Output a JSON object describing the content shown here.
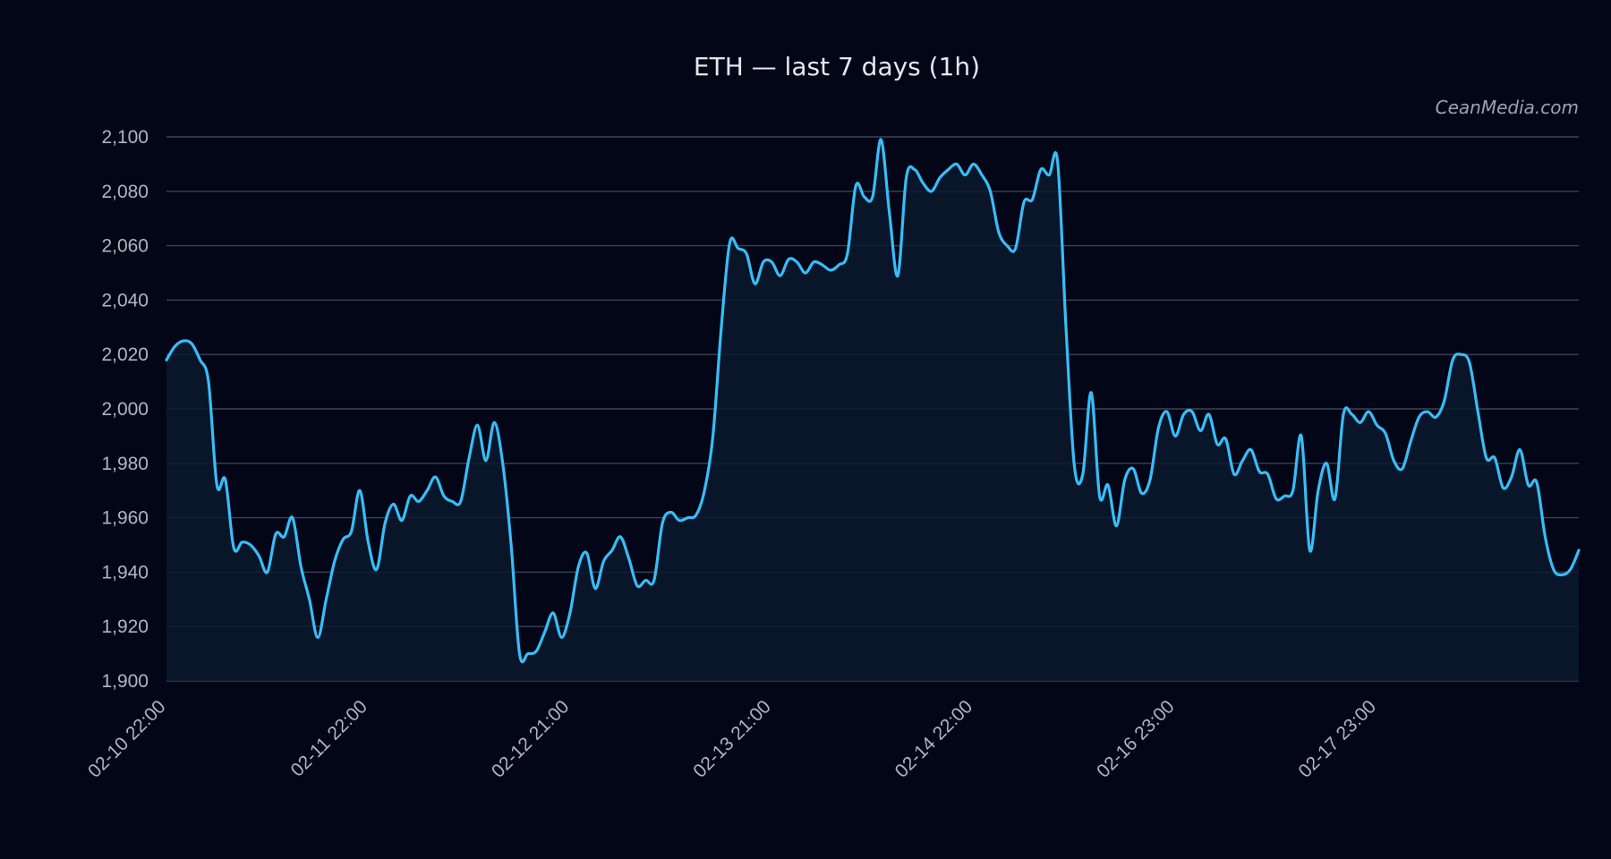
{
  "title": "ETH — last 7 days (1h)",
  "watermark": "CeanMedia.com",
  "colors": {
    "background": "#020617",
    "line": "#38bdf8",
    "area": "#0b1a2e",
    "grid": "#3a4456",
    "text": "#e5e7eb",
    "tick_text": "#aeb6c2"
  },
  "chart_data": {
    "type": "area",
    "title": "ETH — last 7 days (1h)",
    "xlabel": "",
    "ylabel": "",
    "ylim": [
      1900,
      2100
    ],
    "yticks": [
      1900,
      1920,
      1940,
      1960,
      1980,
      2000,
      2020,
      2040,
      2060,
      2080,
      2100
    ],
    "ytick_labels": [
      "1,900",
      "1,920",
      "1,940",
      "1,960",
      "1,980",
      "2,000",
      "2,020",
      "2,040",
      "2,060",
      "2,080",
      "2,100"
    ],
    "xlim": [
      0,
      168
    ],
    "xticks": [
      0,
      24,
      48,
      72,
      96,
      120,
      144
    ],
    "xtick_labels": [
      "02-10 22:00",
      "02-11 22:00",
      "02-12 21:00",
      "02-13 21:00",
      "02-14 22:00",
      "02-16 23:00",
      "02-17 23:00"
    ],
    "grid": true,
    "series": [
      {
        "points": [
          [
            0,
            2018
          ],
          [
            1,
            2023
          ],
          [
            2,
            2025
          ],
          [
            3,
            2024
          ],
          [
            4,
            2018
          ],
          [
            5,
            2010
          ],
          [
            6,
            1972
          ],
          [
            7,
            1974
          ],
          [
            8,
            1949
          ],
          [
            9,
            1951
          ],
          [
            10,
            1950
          ],
          [
            11,
            1946
          ],
          [
            12,
            1940
          ],
          [
            13,
            1954
          ],
          [
            14,
            1953
          ],
          [
            15,
            1960
          ],
          [
            16,
            1942
          ],
          [
            17,
            1930
          ],
          [
            18,
            1916
          ],
          [
            19,
            1930
          ],
          [
            20,
            1944
          ],
          [
            21,
            1952
          ],
          [
            22,
            1955
          ],
          [
            23,
            1970
          ],
          [
            24,
            1951
          ],
          [
            25,
            1941
          ],
          [
            26,
            1958
          ],
          [
            27,
            1965
          ],
          [
            28,
            1959
          ],
          [
            29,
            1968
          ],
          [
            30,
            1966
          ],
          [
            31,
            1970
          ],
          [
            32,
            1975
          ],
          [
            33,
            1968
          ],
          [
            34,
            1966
          ],
          [
            35,
            1966
          ],
          [
            36,
            1982
          ],
          [
            37,
            1994
          ],
          [
            38,
            1981
          ],
          [
            39,
            1995
          ],
          [
            40,
            1980
          ],
          [
            41,
            1950
          ],
          [
            42,
            1910
          ],
          [
            43,
            1910
          ],
          [
            44,
            1911
          ],
          [
            45,
            1918
          ],
          [
            46,
            1925
          ],
          [
            47,
            1916
          ],
          [
            48,
            1925
          ],
          [
            49,
            1942
          ],
          [
            50,
            1947
          ],
          [
            51,
            1934
          ],
          [
            52,
            1944
          ],
          [
            53,
            1948
          ],
          [
            54,
            1953
          ],
          [
            55,
            1945
          ],
          [
            56,
            1935
          ],
          [
            57,
            1937
          ],
          [
            58,
            1937
          ],
          [
            59,
            1958
          ],
          [
            60,
            1962
          ],
          [
            61,
            1959
          ],
          [
            62,
            1960
          ],
          [
            63,
            1961
          ],
          [
            64,
            1970
          ],
          [
            65,
            1990
          ],
          [
            66,
            2030
          ],
          [
            67,
            2061
          ],
          [
            68,
            2059
          ],
          [
            69,
            2057
          ],
          [
            70,
            2046
          ],
          [
            71,
            2054
          ],
          [
            72,
            2054
          ],
          [
            73,
            2049
          ],
          [
            74,
            2055
          ],
          [
            75,
            2054
          ],
          [
            76,
            2050
          ],
          [
            77,
            2054
          ],
          [
            78,
            2053
          ],
          [
            79,
            2051
          ],
          [
            80,
            2053
          ],
          [
            81,
            2057
          ],
          [
            82,
            2082
          ],
          [
            83,
            2078
          ],
          [
            84,
            2078
          ],
          [
            85,
            2099
          ],
          [
            86,
            2072
          ],
          [
            87,
            2049
          ],
          [
            88,
            2085
          ],
          [
            89,
            2088
          ],
          [
            90,
            2083
          ],
          [
            91,
            2080
          ],
          [
            92,
            2085
          ],
          [
            93,
            2088
          ],
          [
            94,
            2090
          ],
          [
            95,
            2086
          ],
          [
            96,
            2090
          ],
          [
            97,
            2086
          ],
          [
            98,
            2080
          ],
          [
            99,
            2065
          ],
          [
            100,
            2060
          ],
          [
            101,
            2059
          ],
          [
            102,
            2076
          ],
          [
            103,
            2077
          ],
          [
            104,
            2088
          ],
          [
            105,
            2086
          ],
          [
            106,
            2091
          ],
          [
            107,
            2030
          ],
          [
            108,
            1979
          ],
          [
            109,
            1976
          ],
          [
            110,
            2006
          ],
          [
            111,
            1968
          ],
          [
            112,
            1972
          ],
          [
            113,
            1957
          ],
          [
            114,
            1974
          ],
          [
            115,
            1978
          ],
          [
            116,
            1969
          ],
          [
            117,
            1974
          ],
          [
            118,
            1993
          ],
          [
            119,
            1999
          ],
          [
            120,
            1990
          ],
          [
            121,
            1998
          ],
          [
            122,
            1999
          ],
          [
            123,
            1992
          ],
          [
            124,
            1998
          ],
          [
            125,
            1987
          ],
          [
            126,
            1989
          ],
          [
            127,
            1976
          ],
          [
            128,
            1981
          ],
          [
            129,
            1985
          ],
          [
            130,
            1977
          ],
          [
            131,
            1976
          ],
          [
            132,
            1967
          ],
          [
            133,
            1968
          ],
          [
            134,
            1970
          ],
          [
            135,
            1990
          ],
          [
            136,
            1948
          ],
          [
            137,
            1970
          ],
          [
            138,
            1980
          ],
          [
            139,
            1967
          ],
          [
            140,
            1998
          ],
          [
            141,
            1998
          ],
          [
            142,
            1995
          ],
          [
            143,
            1999
          ],
          [
            144,
            1994
          ],
          [
            145,
            1991
          ],
          [
            146,
            1981
          ],
          [
            147,
            1978
          ],
          [
            148,
            1988
          ],
          [
            149,
            1997
          ],
          [
            150,
            1999
          ],
          [
            151,
            1997
          ],
          [
            152,
            2003
          ],
          [
            153,
            2018
          ],
          [
            154,
            2020
          ],
          [
            155,
            2017
          ],
          [
            156,
            1999
          ],
          [
            157,
            1982
          ],
          [
            158,
            1982
          ],
          [
            159,
            1971
          ],
          [
            160,
            1975
          ],
          [
            161,
            1985
          ],
          [
            162,
            1972
          ],
          [
            163,
            1973
          ],
          [
            164,
            1953
          ],
          [
            165,
            1941
          ],
          [
            166,
            1939
          ],
          [
            167,
            1941
          ],
          [
            168,
            1948
          ]
        ]
      }
    ]
  }
}
